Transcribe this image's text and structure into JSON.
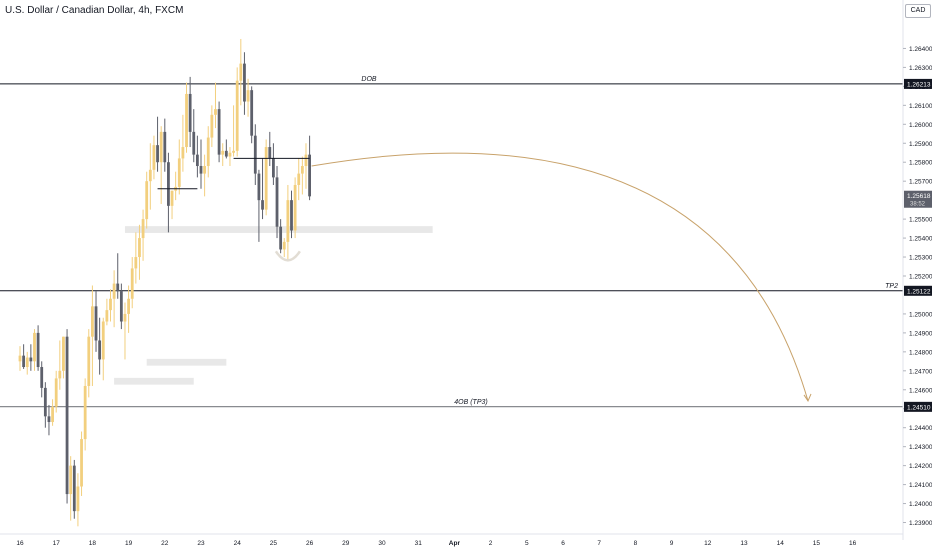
{
  "title": "U.S. Dollar / Canadian Dollar, 4h, FXCM",
  "currency_badge": "CAD",
  "chart_data": {
    "type": "candlestick",
    "ylim": [
      1.2385,
      1.2655
    ],
    "y_ticks": [
      1.264,
      1.263,
      1.262,
      1.261,
      1.26,
      1.259,
      1.258,
      1.257,
      1.255,
      1.254,
      1.253,
      1.252,
      1.25,
      1.249,
      1.248,
      1.247,
      1.246,
      1.245,
      1.244,
      1.243,
      1.242,
      1.241,
      1.24,
      1.239
    ],
    "y_tick_labels": [
      "1.26400",
      "1.26300",
      "1.26200",
      "1.26100",
      "1.26000",
      "1.25900",
      "1.25800",
      "1.25700",
      "1.25500",
      "1.25400",
      "1.25300",
      "1.25200",
      "1.25000",
      "1.24900",
      "1.24800",
      "1.24700",
      "1.24600",
      "1.24500",
      "1.24400",
      "1.24300",
      "1.24200",
      "1.24100",
      "1.24000",
      "1.23900"
    ],
    "x_ticks": [
      "16",
      "17",
      "18",
      "19",
      "22",
      "23",
      "24",
      "25",
      "26",
      "29",
      "30",
      "31",
      "Apr",
      "2",
      "5",
      "6",
      "7",
      "8",
      "9",
      "12",
      "13",
      "14",
      "15",
      "16"
    ],
    "x_tick_index": [
      0,
      10,
      20,
      30,
      40,
      50,
      60,
      70,
      80,
      90,
      100,
      110,
      120,
      130,
      140,
      150,
      160,
      170,
      180,
      190,
      200,
      210,
      220,
      230
    ],
    "candles": [
      {
        "o": 1.2475,
        "h": 1.2483,
        "l": 1.247,
        "c": 1.2478
      },
      {
        "o": 1.2478,
        "h": 1.2484,
        "l": 1.2471,
        "c": 1.2472
      },
      {
        "o": 1.2472,
        "h": 1.248,
        "l": 1.2468,
        "c": 1.2477
      },
      {
        "o": 1.2477,
        "h": 1.2484,
        "l": 1.247,
        "c": 1.2475
      },
      {
        "o": 1.2475,
        "h": 1.2492,
        "l": 1.247,
        "c": 1.249
      },
      {
        "o": 1.249,
        "h": 1.2494,
        "l": 1.247,
        "c": 1.2472
      },
      {
        "o": 1.2472,
        "h": 1.2475,
        "l": 1.2456,
        "c": 1.2461
      },
      {
        "o": 1.2461,
        "h": 1.2464,
        "l": 1.244,
        "c": 1.2446
      },
      {
        "o": 1.2446,
        "h": 1.2452,
        "l": 1.2436,
        "c": 1.2443
      },
      {
        "o": 1.2443,
        "h": 1.2455,
        "l": 1.2441,
        "c": 1.2451
      },
      {
        "o": 1.2451,
        "h": 1.247,
        "l": 1.2448,
        "c": 1.2466
      },
      {
        "o": 1.2466,
        "h": 1.2486,
        "l": 1.246,
        "c": 1.247
      },
      {
        "o": 1.247,
        "h": 1.2488,
        "l": 1.2466,
        "c": 1.2488
      },
      {
        "o": 1.2488,
        "h": 1.2492,
        "l": 1.24,
        "c": 1.2405
      },
      {
        "o": 1.2405,
        "h": 1.2425,
        "l": 1.2391,
        "c": 1.242
      },
      {
        "o": 1.242,
        "h": 1.2423,
        "l": 1.2392,
        "c": 1.2396
      },
      {
        "o": 1.2396,
        "h": 1.2416,
        "l": 1.2388,
        "c": 1.2409
      },
      {
        "o": 1.2409,
        "h": 1.2438,
        "l": 1.2404,
        "c": 1.2434
      },
      {
        "o": 1.2434,
        "h": 1.2466,
        "l": 1.2428,
        "c": 1.2462
      },
      {
        "o": 1.2462,
        "h": 1.2492,
        "l": 1.2456,
        "c": 1.2488
      },
      {
        "o": 1.2488,
        "h": 1.2515,
        "l": 1.2462,
        "c": 1.2504
      },
      {
        "o": 1.2504,
        "h": 1.2512,
        "l": 1.248,
        "c": 1.2486
      },
      {
        "o": 1.2486,
        "h": 1.2498,
        "l": 1.2468,
        "c": 1.2476
      },
      {
        "o": 1.2476,
        "h": 1.2498,
        "l": 1.2465,
        "c": 1.2496
      },
      {
        "o": 1.2496,
        "h": 1.2508,
        "l": 1.2494,
        "c": 1.2502
      },
      {
        "o": 1.2502,
        "h": 1.2513,
        "l": 1.2496,
        "c": 1.2508
      },
      {
        "o": 1.2508,
        "h": 1.2523,
        "l": 1.2493,
        "c": 1.2516
      },
      {
        "o": 1.2516,
        "h": 1.2532,
        "l": 1.2508,
        "c": 1.2512
      },
      {
        "o": 1.2512,
        "h": 1.2516,
        "l": 1.2492,
        "c": 1.2496
      },
      {
        "o": 1.2496,
        "h": 1.2506,
        "l": 1.2476,
        "c": 1.25
      },
      {
        "o": 1.25,
        "h": 1.2515,
        "l": 1.249,
        "c": 1.2508
      },
      {
        "o": 1.2508,
        "h": 1.253,
        "l": 1.2503,
        "c": 1.2524
      },
      {
        "o": 1.2524,
        "h": 1.2543,
        "l": 1.2516,
        "c": 1.253
      },
      {
        "o": 1.253,
        "h": 1.2547,
        "l": 1.2518,
        "c": 1.254
      },
      {
        "o": 1.254,
        "h": 1.2555,
        "l": 1.2528,
        "c": 1.255
      },
      {
        "o": 1.255,
        "h": 1.2575,
        "l": 1.2545,
        "c": 1.257
      },
      {
        "o": 1.257,
        "h": 1.259,
        "l": 1.2555,
        "c": 1.2576
      },
      {
        "o": 1.2576,
        "h": 1.2594,
        "l": 1.2571,
        "c": 1.2589
      },
      {
        "o": 1.2589,
        "h": 1.2604,
        "l": 1.2575,
        "c": 1.258
      },
      {
        "o": 1.258,
        "h": 1.2599,
        "l": 1.2558,
        "c": 1.2596
      },
      {
        "o": 1.2596,
        "h": 1.2603,
        "l": 1.2575,
        "c": 1.258
      },
      {
        "o": 1.258,
        "h": 1.2585,
        "l": 1.2543,
        "c": 1.2557
      },
      {
        "o": 1.2557,
        "h": 1.2565,
        "l": 1.255,
        "c": 1.2565
      },
      {
        "o": 1.2565,
        "h": 1.2575,
        "l": 1.256,
        "c": 1.2567
      },
      {
        "o": 1.2567,
        "h": 1.2592,
        "l": 1.2563,
        "c": 1.2582
      },
      {
        "o": 1.2582,
        "h": 1.2605,
        "l": 1.2575,
        "c": 1.2588
      },
      {
        "o": 1.2588,
        "h": 1.2622,
        "l": 1.2585,
        "c": 1.2616
      },
      {
        "o": 1.2616,
        "h": 1.2625,
        "l": 1.2588,
        "c": 1.2596
      },
      {
        "o": 1.2596,
        "h": 1.2608,
        "l": 1.258,
        "c": 1.2584
      },
      {
        "o": 1.2584,
        "h": 1.2594,
        "l": 1.2572,
        "c": 1.2578
      },
      {
        "o": 1.2578,
        "h": 1.2592,
        "l": 1.2566,
        "c": 1.2574
      },
      {
        "o": 1.2574,
        "h": 1.2584,
        "l": 1.2562,
        "c": 1.2578
      },
      {
        "o": 1.2578,
        "h": 1.2599,
        "l": 1.2572,
        "c": 1.2593
      },
      {
        "o": 1.2593,
        "h": 1.261,
        "l": 1.2588,
        "c": 1.2605
      },
      {
        "o": 1.2605,
        "h": 1.2622,
        "l": 1.2598,
        "c": 1.2608
      },
      {
        "o": 1.2608,
        "h": 1.2612,
        "l": 1.258,
        "c": 1.2584
      },
      {
        "o": 1.2584,
        "h": 1.259,
        "l": 1.2578,
        "c": 1.2586
      },
      {
        "o": 1.2586,
        "h": 1.2592,
        "l": 1.2582,
        "c": 1.2583
      },
      {
        "o": 1.2583,
        "h": 1.2588,
        "l": 1.2578,
        "c": 1.2585
      },
      {
        "o": 1.2585,
        "h": 1.261,
        "l": 1.2583,
        "c": 1.2586
      },
      {
        "o": 1.2586,
        "h": 1.263,
        "l": 1.2583,
        "c": 1.2623
      },
      {
        "o": 1.2623,
        "h": 1.2645,
        "l": 1.261,
        "c": 1.2632
      },
      {
        "o": 1.2632,
        "h": 1.2638,
        "l": 1.2605,
        "c": 1.2612
      },
      {
        "o": 1.2612,
        "h": 1.2624,
        "l": 1.2604,
        "c": 1.2618
      },
      {
        "o": 1.2618,
        "h": 1.262,
        "l": 1.259,
        "c": 1.2594
      },
      {
        "o": 1.2594,
        "h": 1.26,
        "l": 1.2568,
        "c": 1.2574
      },
      {
        "o": 1.2574,
        "h": 1.2576,
        "l": 1.2538,
        "c": 1.256
      },
      {
        "o": 1.256,
        "h": 1.2582,
        "l": 1.255,
        "c": 1.2555
      },
      {
        "o": 1.2555,
        "h": 1.2592,
        "l": 1.2552,
        "c": 1.2588
      },
      {
        "o": 1.2588,
        "h": 1.2596,
        "l": 1.2578,
        "c": 1.2582
      },
      {
        "o": 1.2582,
        "h": 1.259,
        "l": 1.2568,
        "c": 1.2572
      },
      {
        "o": 1.2572,
        "h": 1.2578,
        "l": 1.254,
        "c": 1.2546
      },
      {
        "o": 1.2546,
        "h": 1.255,
        "l": 1.2532,
        "c": 1.2534
      },
      {
        "o": 1.2534,
        "h": 1.254,
        "l": 1.253,
        "c": 1.2538
      },
      {
        "o": 1.2538,
        "h": 1.2568,
        "l": 1.2528,
        "c": 1.256
      },
      {
        "o": 1.256,
        "h": 1.2565,
        "l": 1.254,
        "c": 1.2544
      },
      {
        "o": 1.2544,
        "h": 1.2572,
        "l": 1.254,
        "c": 1.2568
      },
      {
        "o": 1.2568,
        "h": 1.2582,
        "l": 1.256,
        "c": 1.2574
      },
      {
        "o": 1.2574,
        "h": 1.2583,
        "l": 1.2563,
        "c": 1.2578
      },
      {
        "o": 1.2578,
        "h": 1.259,
        "l": 1.2566,
        "c": 1.2584
      },
      {
        "o": 1.2584,
        "h": 1.2594,
        "l": 1.256,
        "c": 1.2562
      }
    ],
    "horizontal_levels": [
      {
        "value": 1.26213,
        "label": "1.26213",
        "text": "DOB"
      },
      {
        "value": 1.25122,
        "label": "1.25122",
        "text": "TP2"
      },
      {
        "value": 1.2451,
        "label": "1.24510",
        "text": "4OB (TP3)"
      }
    ],
    "last_price": {
      "value": 1.25618,
      "label": "1.25618",
      "countdown": "38:52"
    },
    "zones": [
      {
        "from": 1.25435,
        "to": 1.25455,
        "start_index": 29,
        "end_index": 114
      },
      {
        "from": 1.24735,
        "to": 1.24755,
        "start_index": 35,
        "end_index": 57
      },
      {
        "from": 1.24635,
        "to": 1.24655,
        "start_index": 26,
        "end_index": 48
      }
    ],
    "projection": {
      "start_price": 1.2578,
      "peak_price": 1.2602,
      "end_price": 1.2452
    },
    "colors": {
      "bull": "#f2cf7e",
      "bear": "#5d606b",
      "projection": "#c8a26a",
      "level": "#131722"
    },
    "grid": false,
    "legend": "none"
  }
}
